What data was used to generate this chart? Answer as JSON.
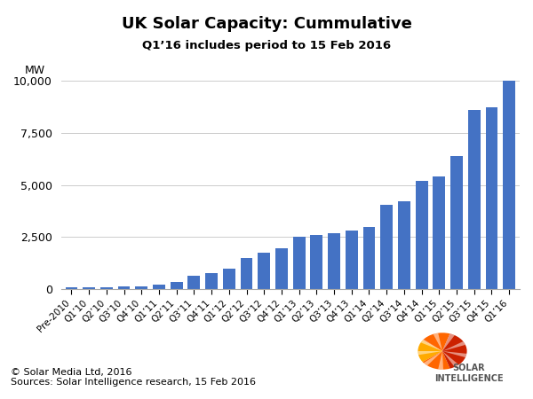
{
  "title": "UK Solar Capacity: Cummulative",
  "subtitle": "Q1’16 includes period to 15 Feb 2016",
  "ylabel": "MW",
  "footer_line1": "© Solar Media Ltd, 2016",
  "footer_line2": "Sources: Solar Intelligence research, 15 Feb 2016",
  "bar_color": "#4472C4",
  "categories": [
    "Pre-2010",
    "Q1’10",
    "Q2’10",
    "Q3’10",
    "Q4’10",
    "Q1’11",
    "Q2’11",
    "Q3’11",
    "Q4’11",
    "Q1’12",
    "Q2’12",
    "Q3’12",
    "Q4’12",
    "Q1’13",
    "Q2’13",
    "Q3’13",
    "Q4’13",
    "Q1’14",
    "Q2’14",
    "Q3’14",
    "Q4’14",
    "Q1’15",
    "Q2’15",
    "Q3’15",
    "Q4’15",
    "Q1’16"
  ],
  "values": [
    70,
    90,
    100,
    115,
    150,
    200,
    350,
    650,
    750,
    1000,
    1500,
    1750,
    1950,
    2500,
    2600,
    2700,
    2800,
    3000,
    4050,
    4200,
    5200,
    5400,
    6400,
    8600,
    8750,
    10000
  ],
  "ylim": [
    0,
    10000
  ],
  "yticks": [
    0,
    2500,
    5000,
    7500,
    10000
  ],
  "background_color": "#ffffff"
}
